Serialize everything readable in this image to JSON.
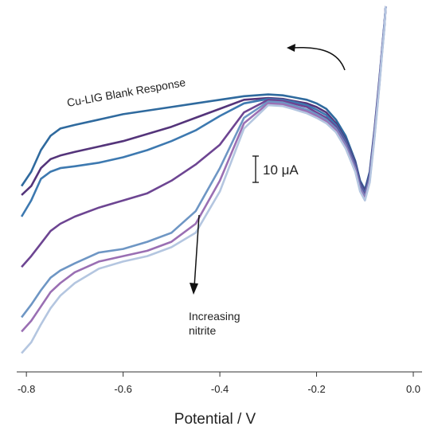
{
  "chart_data": {
    "type": "line",
    "xlabel": "Potential / V",
    "ylabel": "",
    "xlim": [
      -0.82,
      0.0
    ],
    "ylim": [
      -175,
      20
    ],
    "xticks": [
      -0.8,
      -0.6,
      -0.4,
      -0.2,
      0.0
    ],
    "xtick_labels": [
      "-0.8",
      "-0.6",
      "-0.4",
      "-0.2",
      "0.0"
    ],
    "grid": false,
    "series": [
      {
        "color": "#2f6a9e",
        "x": [
          -0.81,
          -0.79,
          -0.77,
          -0.75,
          -0.73,
          -0.7,
          -0.65,
          -0.6,
          -0.55,
          -0.5,
          -0.45,
          -0.4,
          -0.35,
          -0.3,
          -0.27,
          -0.25,
          -0.22,
          -0.2,
          -0.18,
          -0.16,
          -0.14,
          -0.12,
          -0.11,
          -0.1,
          -0.09,
          -0.08,
          -0.07,
          -0.065,
          -0.06,
          -0.057
        ],
        "y": [
          -80,
          -72,
          -60,
          -52,
          -48,
          -46,
          -43,
          -40,
          -38,
          -36,
          -34,
          -32,
          -30,
          -29,
          -29.5,
          -30.5,
          -32,
          -34,
          -37,
          -43,
          -52,
          -66,
          -77,
          -82,
          -72,
          -48,
          -20,
          -5,
          10,
          20
        ]
      },
      {
        "color": "#54347a",
        "x": [
          -0.81,
          -0.79,
          -0.77,
          -0.75,
          -0.73,
          -0.7,
          -0.65,
          -0.6,
          -0.55,
          -0.5,
          -0.45,
          -0.4,
          -0.35,
          -0.3,
          -0.27,
          -0.25,
          -0.22,
          -0.2,
          -0.18,
          -0.16,
          -0.14,
          -0.12,
          -0.11,
          -0.1,
          -0.09,
          -0.08,
          -0.07,
          -0.065,
          -0.06,
          -0.057
        ],
        "y": [
          -85,
          -80,
          -70,
          -65,
          -63,
          -61,
          -58,
          -55,
          -51,
          -47,
          -42,
          -37,
          -32,
          -31,
          -31.5,
          -32.5,
          -34,
          -36,
          -39,
          -45,
          -54,
          -67,
          -78,
          -83,
          -73,
          -49,
          -21,
          -6,
          9,
          20
        ]
      },
      {
        "color": "#3d79b0",
        "x": [
          -0.81,
          -0.79,
          -0.77,
          -0.75,
          -0.73,
          -0.7,
          -0.65,
          -0.6,
          -0.55,
          -0.5,
          -0.45,
          -0.4,
          -0.35,
          -0.3,
          -0.27,
          -0.25,
          -0.22,
          -0.2,
          -0.18,
          -0.16,
          -0.14,
          -0.12,
          -0.11,
          -0.1,
          -0.09,
          -0.08,
          -0.07,
          -0.065,
          -0.06,
          -0.057
        ],
        "y": [
          -97,
          -88,
          -76,
          -72,
          -70,
          -69,
          -67,
          -64,
          -60,
          -55,
          -49,
          -41,
          -34,
          -31.5,
          -32,
          -33,
          -35,
          -37.5,
          -40.5,
          -46,
          -55,
          -68,
          -79,
          -84,
          -74,
          -50,
          -22,
          -6,
          9,
          20
        ]
      },
      {
        "color": "#6d4592",
        "x": [
          -0.81,
          -0.79,
          -0.77,
          -0.75,
          -0.73,
          -0.7,
          -0.65,
          -0.6,
          -0.55,
          -0.5,
          -0.45,
          -0.4,
          -0.35,
          -0.3,
          -0.27,
          -0.25,
          -0.22,
          -0.2,
          -0.18,
          -0.16,
          -0.14,
          -0.12,
          -0.11,
          -0.1,
          -0.09,
          -0.08,
          -0.07,
          -0.065,
          -0.06,
          -0.057
        ],
        "y": [
          -125,
          -119,
          -112,
          -105,
          -101,
          -97,
          -92,
          -88,
          -84,
          -77,
          -68,
          -57,
          -39,
          -32,
          -32.5,
          -34,
          -36,
          -39,
          -42,
          -47,
          -56,
          -69,
          -80,
          -85,
          -75,
          -50,
          -22,
          -6,
          8,
          20
        ]
      },
      {
        "color": "#6e96c4",
        "x": [
          -0.81,
          -0.79,
          -0.77,
          -0.75,
          -0.73,
          -0.7,
          -0.65,
          -0.6,
          -0.55,
          -0.5,
          -0.45,
          -0.4,
          -0.35,
          -0.3,
          -0.27,
          -0.25,
          -0.22,
          -0.2,
          -0.18,
          -0.16,
          -0.14,
          -0.12,
          -0.11,
          -0.1,
          -0.09,
          -0.08,
          -0.07,
          -0.065,
          -0.06,
          -0.057
        ],
        "y": [
          -153,
          -146,
          -138,
          -131,
          -127,
          -123,
          -117,
          -115,
          -111,
          -106,
          -94,
          -70,
          -42,
          -33,
          -33.5,
          -35,
          -37.5,
          -40,
          -43,
          -48,
          -57,
          -70,
          -81,
          -86,
          -76,
          -51,
          -23,
          -7,
          8,
          20
        ]
      },
      {
        "color": "#9a6fb3",
        "x": [
          -0.81,
          -0.79,
          -0.77,
          -0.75,
          -0.73,
          -0.7,
          -0.65,
          -0.6,
          -0.55,
          -0.5,
          -0.45,
          -0.4,
          -0.35,
          -0.3,
          -0.27,
          -0.25,
          -0.22,
          -0.2,
          -0.18,
          -0.16,
          -0.14,
          -0.12,
          -0.11,
          -0.1,
          -0.09,
          -0.08,
          -0.07,
          -0.065,
          -0.06,
          -0.057
        ],
        "y": [
          -161,
          -155,
          -147,
          -139,
          -134,
          -128,
          -122,
          -119,
          -116,
          -111,
          -101,
          -77,
          -45,
          -34,
          -34.5,
          -36,
          -38.5,
          -41,
          -44,
          -49,
          -58,
          -71,
          -82,
          -87,
          -77,
          -52,
          -23,
          -7,
          8,
          20
        ]
      },
      {
        "color": "#b4c6e0",
        "x": [
          -0.81,
          -0.79,
          -0.77,
          -0.75,
          -0.73,
          -0.7,
          -0.65,
          -0.6,
          -0.55,
          -0.5,
          -0.45,
          -0.4,
          -0.35,
          -0.3,
          -0.27,
          -0.25,
          -0.22,
          -0.2,
          -0.18,
          -0.16,
          -0.14,
          -0.12,
          -0.11,
          -0.1,
          -0.09,
          -0.08,
          -0.07,
          -0.065,
          -0.06,
          -0.057
        ],
        "y": [
          -173,
          -167,
          -157,
          -148,
          -141,
          -134,
          -126,
          -122,
          -119,
          -114,
          -106,
          -83,
          -48,
          -35,
          -35.5,
          -37,
          -39.5,
          -42,
          -45,
          -50,
          -59,
          -72,
          -83,
          -88,
          -78,
          -53,
          -24,
          -8,
          7,
          20
        ]
      }
    ],
    "annotations": {
      "blank_label": "Cu-LIG Blank Response",
      "scale_bar_label": "10 μA",
      "scale_bar_value": 10,
      "arrow_label_line1": "Increasing",
      "arrow_label_line2": "nitrite"
    }
  }
}
